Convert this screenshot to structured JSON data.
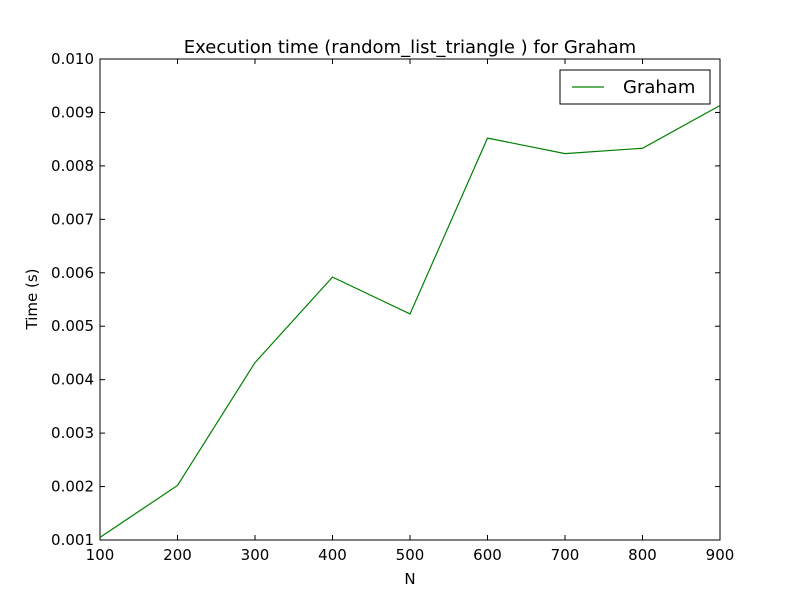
{
  "chart_data": {
    "type": "line",
    "title": "Execution time (random_list_triangle ) for Graham",
    "xlabel": "N",
    "ylabel": "Time (s)",
    "xlim": [
      100,
      900
    ],
    "ylim": [
      0.001,
      0.01
    ],
    "xticks": [
      "100",
      "200",
      "300",
      "400",
      "500",
      "600",
      "700",
      "800",
      "900"
    ],
    "yticks": [
      "0.001",
      "0.002",
      "0.003",
      "0.004",
      "0.005",
      "0.006",
      "0.007",
      "0.008",
      "0.009",
      "0.010"
    ],
    "grid": false,
    "legend_position": "top-right",
    "series": [
      {
        "name": "Graham",
        "color": "#008000",
        "x": [
          100,
          200,
          300,
          400,
          500,
          600,
          700,
          800,
          900
        ],
        "y": [
          0.00105,
          0.00202,
          0.00432,
          0.00592,
          0.00523,
          0.00852,
          0.00823,
          0.00833,
          0.00913
        ]
      }
    ]
  }
}
